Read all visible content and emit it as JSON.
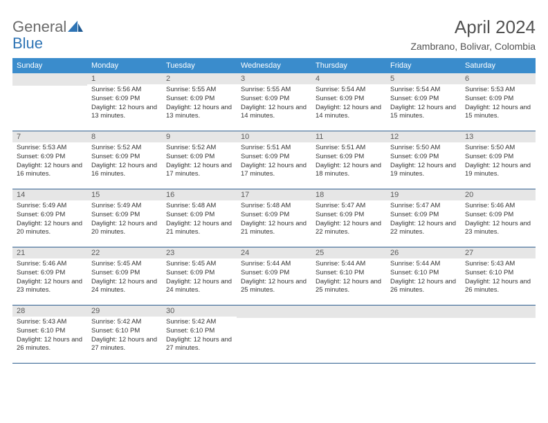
{
  "logo": {
    "text1": "General",
    "text2": "Blue"
  },
  "title": "April 2024",
  "location": "Zambrano, Bolivar, Colombia",
  "colors": {
    "header_bg": "#3a8ccc",
    "header_fg": "#ffffff",
    "daynum_bg": "#e6e6e6",
    "rule": "#2e5e8f",
    "title_fg": "#525252",
    "logo_gray": "#6a6a6a",
    "logo_blue": "#2e74b5"
  },
  "weekdays": [
    "Sunday",
    "Monday",
    "Tuesday",
    "Wednesday",
    "Thursday",
    "Friday",
    "Saturday"
  ],
  "first_weekday_index": 1,
  "days": [
    {
      "n": 1,
      "sunrise": "5:56 AM",
      "sunset": "6:09 PM",
      "daylight": "12 hours and 13 minutes."
    },
    {
      "n": 2,
      "sunrise": "5:55 AM",
      "sunset": "6:09 PM",
      "daylight": "12 hours and 13 minutes."
    },
    {
      "n": 3,
      "sunrise": "5:55 AM",
      "sunset": "6:09 PM",
      "daylight": "12 hours and 14 minutes."
    },
    {
      "n": 4,
      "sunrise": "5:54 AM",
      "sunset": "6:09 PM",
      "daylight": "12 hours and 14 minutes."
    },
    {
      "n": 5,
      "sunrise": "5:54 AM",
      "sunset": "6:09 PM",
      "daylight": "12 hours and 15 minutes."
    },
    {
      "n": 6,
      "sunrise": "5:53 AM",
      "sunset": "6:09 PM",
      "daylight": "12 hours and 15 minutes."
    },
    {
      "n": 7,
      "sunrise": "5:53 AM",
      "sunset": "6:09 PM",
      "daylight": "12 hours and 16 minutes."
    },
    {
      "n": 8,
      "sunrise": "5:52 AM",
      "sunset": "6:09 PM",
      "daylight": "12 hours and 16 minutes."
    },
    {
      "n": 9,
      "sunrise": "5:52 AM",
      "sunset": "6:09 PM",
      "daylight": "12 hours and 17 minutes."
    },
    {
      "n": 10,
      "sunrise": "5:51 AM",
      "sunset": "6:09 PM",
      "daylight": "12 hours and 17 minutes."
    },
    {
      "n": 11,
      "sunrise": "5:51 AM",
      "sunset": "6:09 PM",
      "daylight": "12 hours and 18 minutes."
    },
    {
      "n": 12,
      "sunrise": "5:50 AM",
      "sunset": "6:09 PM",
      "daylight": "12 hours and 19 minutes."
    },
    {
      "n": 13,
      "sunrise": "5:50 AM",
      "sunset": "6:09 PM",
      "daylight": "12 hours and 19 minutes."
    },
    {
      "n": 14,
      "sunrise": "5:49 AM",
      "sunset": "6:09 PM",
      "daylight": "12 hours and 20 minutes."
    },
    {
      "n": 15,
      "sunrise": "5:49 AM",
      "sunset": "6:09 PM",
      "daylight": "12 hours and 20 minutes."
    },
    {
      "n": 16,
      "sunrise": "5:48 AM",
      "sunset": "6:09 PM",
      "daylight": "12 hours and 21 minutes."
    },
    {
      "n": 17,
      "sunrise": "5:48 AM",
      "sunset": "6:09 PM",
      "daylight": "12 hours and 21 minutes."
    },
    {
      "n": 18,
      "sunrise": "5:47 AM",
      "sunset": "6:09 PM",
      "daylight": "12 hours and 22 minutes."
    },
    {
      "n": 19,
      "sunrise": "5:47 AM",
      "sunset": "6:09 PM",
      "daylight": "12 hours and 22 minutes."
    },
    {
      "n": 20,
      "sunrise": "5:46 AM",
      "sunset": "6:09 PM",
      "daylight": "12 hours and 23 minutes."
    },
    {
      "n": 21,
      "sunrise": "5:46 AM",
      "sunset": "6:09 PM",
      "daylight": "12 hours and 23 minutes."
    },
    {
      "n": 22,
      "sunrise": "5:45 AM",
      "sunset": "6:09 PM",
      "daylight": "12 hours and 24 minutes."
    },
    {
      "n": 23,
      "sunrise": "5:45 AM",
      "sunset": "6:09 PM",
      "daylight": "12 hours and 24 minutes."
    },
    {
      "n": 24,
      "sunrise": "5:44 AM",
      "sunset": "6:09 PM",
      "daylight": "12 hours and 25 minutes."
    },
    {
      "n": 25,
      "sunrise": "5:44 AM",
      "sunset": "6:10 PM",
      "daylight": "12 hours and 25 minutes."
    },
    {
      "n": 26,
      "sunrise": "5:44 AM",
      "sunset": "6:10 PM",
      "daylight": "12 hours and 26 minutes."
    },
    {
      "n": 27,
      "sunrise": "5:43 AM",
      "sunset": "6:10 PM",
      "daylight": "12 hours and 26 minutes."
    },
    {
      "n": 28,
      "sunrise": "5:43 AM",
      "sunset": "6:10 PM",
      "daylight": "12 hours and 26 minutes."
    },
    {
      "n": 29,
      "sunrise": "5:42 AM",
      "sunset": "6:10 PM",
      "daylight": "12 hours and 27 minutes."
    },
    {
      "n": 30,
      "sunrise": "5:42 AM",
      "sunset": "6:10 PM",
      "daylight": "12 hours and 27 minutes."
    }
  ],
  "labels": {
    "sunrise": "Sunrise:",
    "sunset": "Sunset:",
    "daylight": "Daylight:"
  }
}
